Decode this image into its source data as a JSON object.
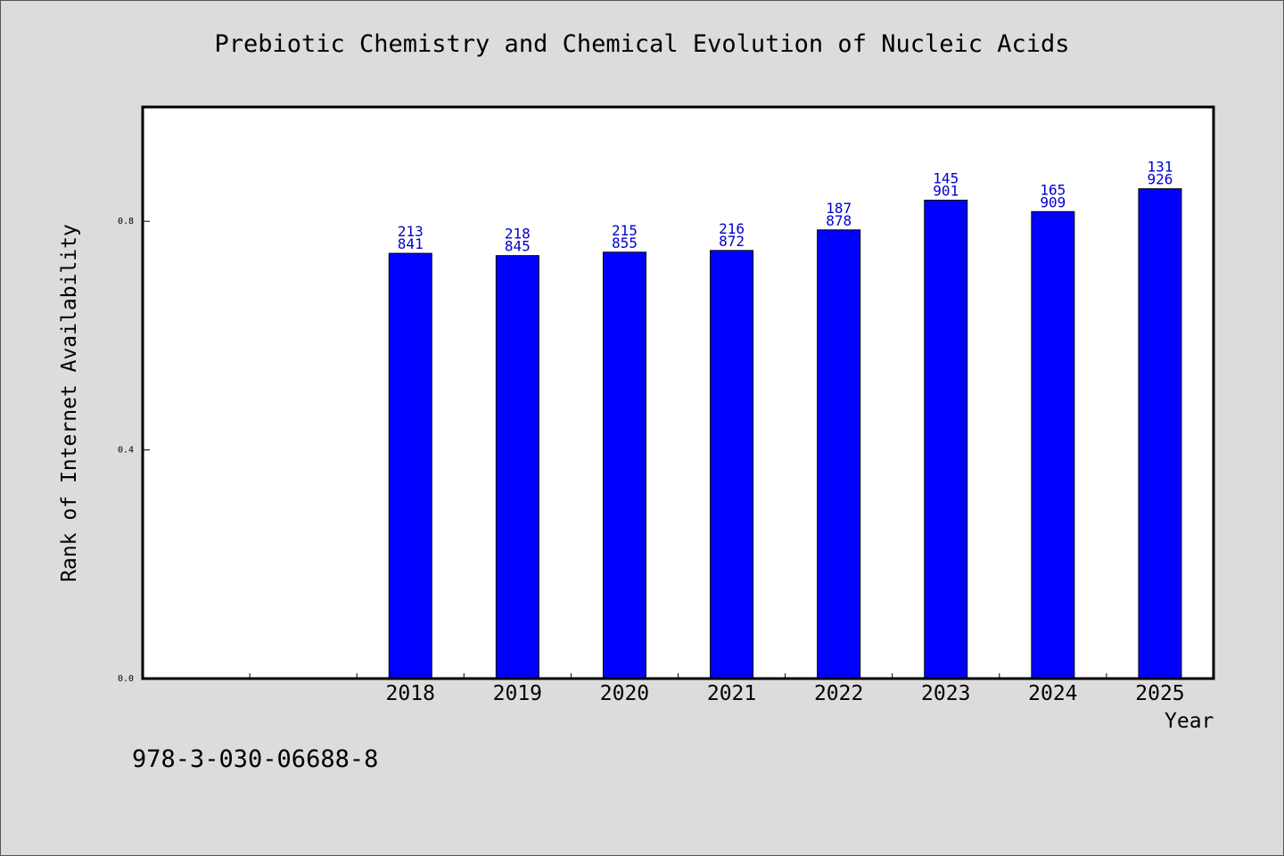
{
  "chart_data": {
    "type": "bar",
    "title": "Prebiotic Chemistry and Chemical Evolution of Nucleic Acids",
    "xlabel": "Year",
    "ylabel": "Rank of Internet Availability",
    "categories": [
      "2018",
      "2019",
      "2020",
      "2021",
      "2022",
      "2023",
      "2024",
      "2025"
    ],
    "values": [
      0.744,
      0.74,
      0.746,
      0.749,
      0.785,
      0.837,
      0.817,
      0.857
    ],
    "bar_labels": [
      [
        "213",
        "841"
      ],
      [
        "218",
        "845"
      ],
      [
        "215",
        "855"
      ],
      [
        "216",
        "872"
      ],
      [
        "187",
        "878"
      ],
      [
        "145",
        "901"
      ],
      [
        "165",
        "909"
      ],
      [
        "131",
        "926"
      ]
    ],
    "yticks": [
      "0.0",
      "0.4",
      "0.8"
    ],
    "ylim": [
      0,
      1.0
    ],
    "grid": false,
    "legend": "none",
    "colors": {
      "bar": "#0000ff",
      "bar_label": "#0000cc",
      "background": "#dcdcdc",
      "plot_area": "#ffffff"
    }
  },
  "footnote": "978-3-030-06688-8"
}
